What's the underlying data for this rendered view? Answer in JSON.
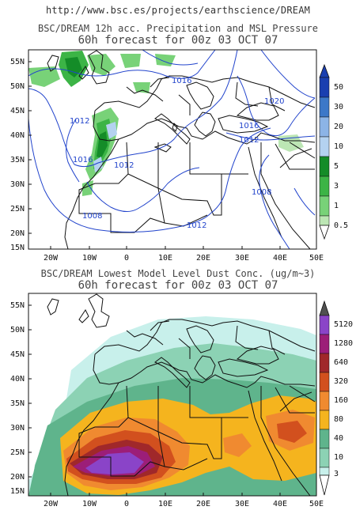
{
  "header": {
    "url": "http://www.bsc.es/projects/earthscience/DREAM"
  },
  "panels": [
    {
      "title": "BSC/DREAM 12h acc. Precipitation and MSL Pressure",
      "subtitle": "60h forecast for 00z 03 OCT 07",
      "lat_labels": [
        "55N",
        "50N",
        "45N",
        "40N",
        "35N",
        "30N",
        "25N",
        "20N",
        "15N"
      ],
      "lon_labels": [
        "20W",
        "10W",
        "0",
        "10E",
        "20E",
        "30E",
        "40E",
        "50E"
      ],
      "colorbar": {
        "levels": [
          "50",
          "30",
          "20",
          "10",
          "5",
          "3",
          "1",
          "0.5"
        ],
        "colors": [
          "#1a3fb0",
          "#3c78c8",
          "#8cb4e6",
          "#b4d2f0",
          "#148c28",
          "#3cb446",
          "#78d278",
          "#bce6b4"
        ]
      },
      "isobar_labels": [
        "1016",
        "1020",
        "1012",
        "1016",
        "1016",
        "1012",
        "1012",
        "1008",
        "1008",
        "1012"
      ]
    },
    {
      "title": "BSC/DREAM Lowest Model Level Dust Conc. (ug/m~3)",
      "subtitle": "60h forecast for 00z 03 OCT 07",
      "lat_labels": [
        "55N",
        "50N",
        "45N",
        "40N",
        "35N",
        "30N",
        "25N",
        "20N",
        "15N"
      ],
      "lon_labels": [
        "20W",
        "10W",
        "0",
        "10E",
        "20E",
        "30E",
        "40E",
        "50E"
      ],
      "colorbar": {
        "levels": [
          "5120",
          "1280",
          "640",
          "320",
          "160",
          "80",
          "40",
          "10",
          "3"
        ],
        "colors": [
          "#505050",
          "#8a44c8",
          "#9c1e78",
          "#a0282a",
          "#d2501e",
          "#f08a30",
          "#f5b41e",
          "#5fb48c",
          "#8cd2b4",
          "#c8f0eb"
        ]
      }
    }
  ]
}
